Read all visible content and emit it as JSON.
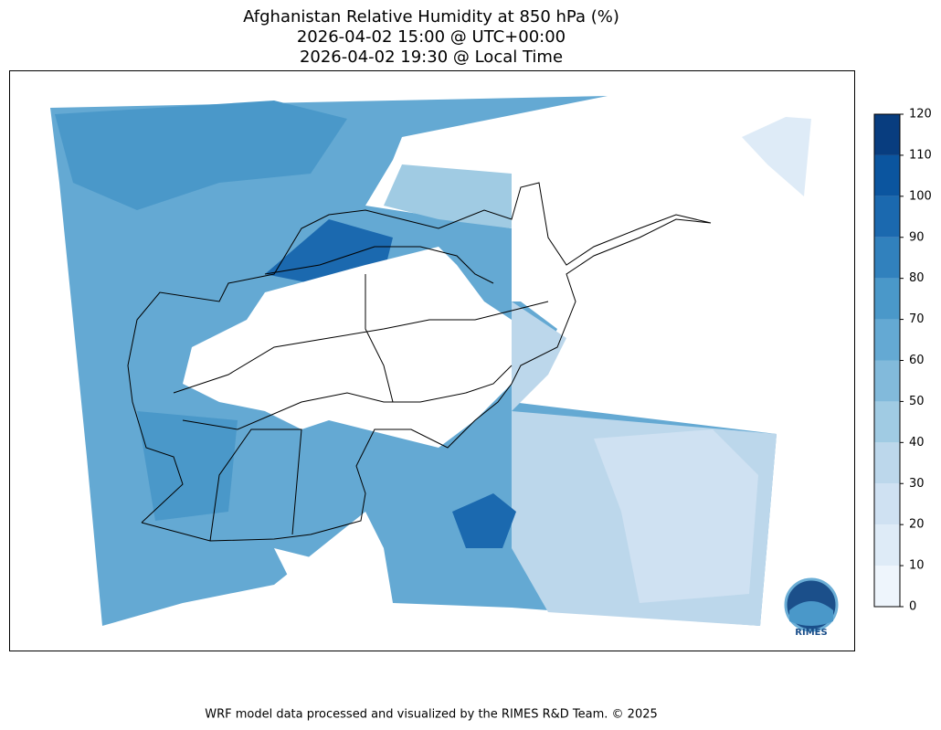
{
  "header": {
    "title": "Afghanistan Relative Humidity at 850 hPa (%)",
    "utc_time": "2026-04-02 15:00 @ UTC+00:00",
    "local_time": "2026-04-02 19:30 @ Local Time"
  },
  "colorbar": {
    "range": [
      0,
      120
    ],
    "ticks": [
      0,
      10,
      20,
      30,
      40,
      50,
      60,
      70,
      80,
      90,
      100,
      110,
      120
    ],
    "colors": [
      "#eef5fc",
      "#deebf7",
      "#cfe1f2",
      "#bcd7eb",
      "#a0cbe3",
      "#82badb",
      "#64a9d3",
      "#4a98c9",
      "#3181bd",
      "#1b69af",
      "#0b559f",
      "#083d7f"
    ]
  },
  "logo": "RIMES",
  "footer": "WRF model data processed and visualized by the RIMES R&D Team. © 2025"
}
